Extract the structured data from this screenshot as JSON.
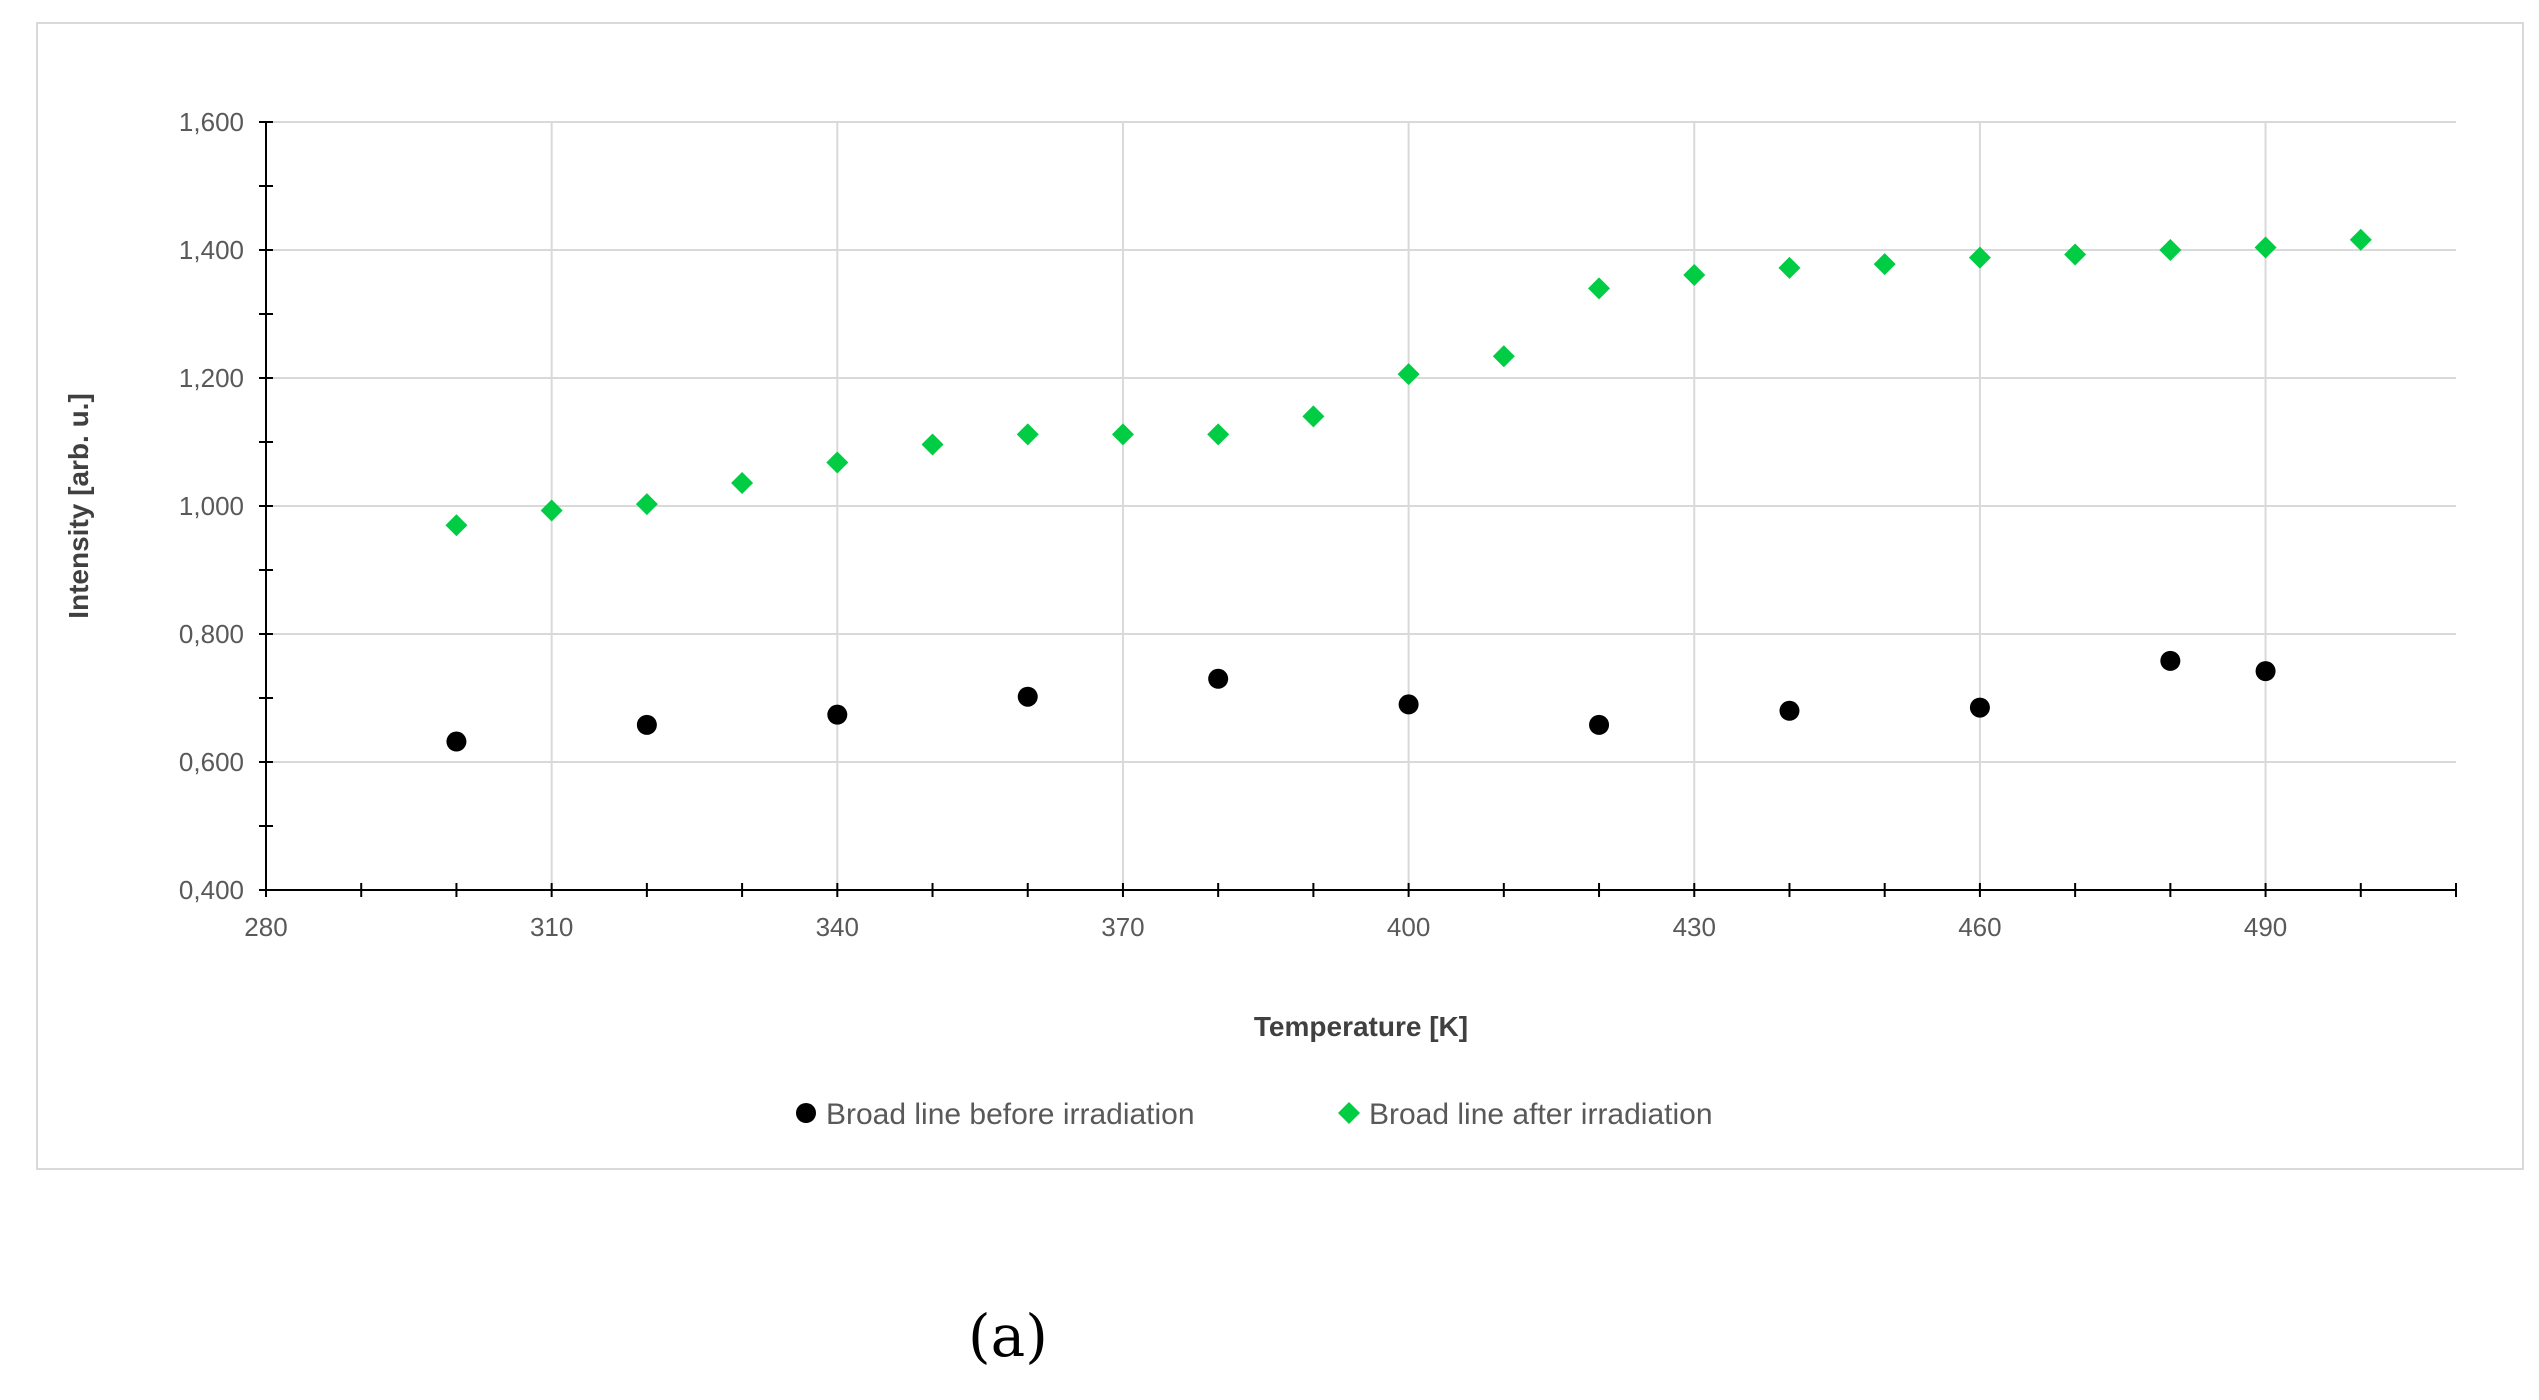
{
  "caption": "(a)",
  "chart_data": {
    "type": "scatter",
    "xlabel": "Temperature [K]",
    "ylabel": "Intensity [arb. u.]",
    "xlim": [
      280,
      510
    ],
    "ylim": [
      0.4,
      1.6
    ],
    "x_ticks": [
      280,
      310,
      340,
      370,
      400,
      430,
      460,
      490
    ],
    "x_minor_step": 10,
    "x_tick_labels": [
      "280",
      "310",
      "340",
      "370",
      "400",
      "430",
      "460",
      "490"
    ],
    "y_ticks": [
      0.4,
      0.6,
      0.8,
      1.0,
      1.2,
      1.4,
      1.6
    ],
    "y_minor_step": 0.1,
    "y_tick_labels": [
      "0,400",
      "0,600",
      "0,800",
      "1,000",
      "1,200",
      "1,400",
      "1,600"
    ],
    "grid": true,
    "legend_position": "bottom",
    "series": [
      {
        "name": "Broad line before irradiation",
        "marker": "circle",
        "color": "#000000",
        "x": [
          300,
          320,
          340,
          360,
          380,
          400,
          420,
          440,
          460,
          480,
          490
        ],
        "y": [
          0.632,
          0.658,
          0.674,
          0.702,
          0.73,
          0.69,
          0.658,
          0.68,
          0.685,
          0.758,
          0.742
        ]
      },
      {
        "name": "Broad line after irradiation",
        "marker": "diamond",
        "color": "#00cc44",
        "x": [
          300,
          310,
          320,
          330,
          340,
          350,
          360,
          370,
          380,
          390,
          400,
          410,
          420,
          430,
          440,
          450,
          460,
          470,
          480,
          490,
          500
        ],
        "y": [
          0.97,
          0.993,
          1.003,
          1.036,
          1.068,
          1.096,
          1.112,
          1.112,
          1.112,
          1.14,
          1.206,
          1.234,
          1.34,
          1.361,
          1.372,
          1.378,
          1.388,
          1.393,
          1.4,
          1.404,
          1.416
        ]
      }
    ]
  }
}
